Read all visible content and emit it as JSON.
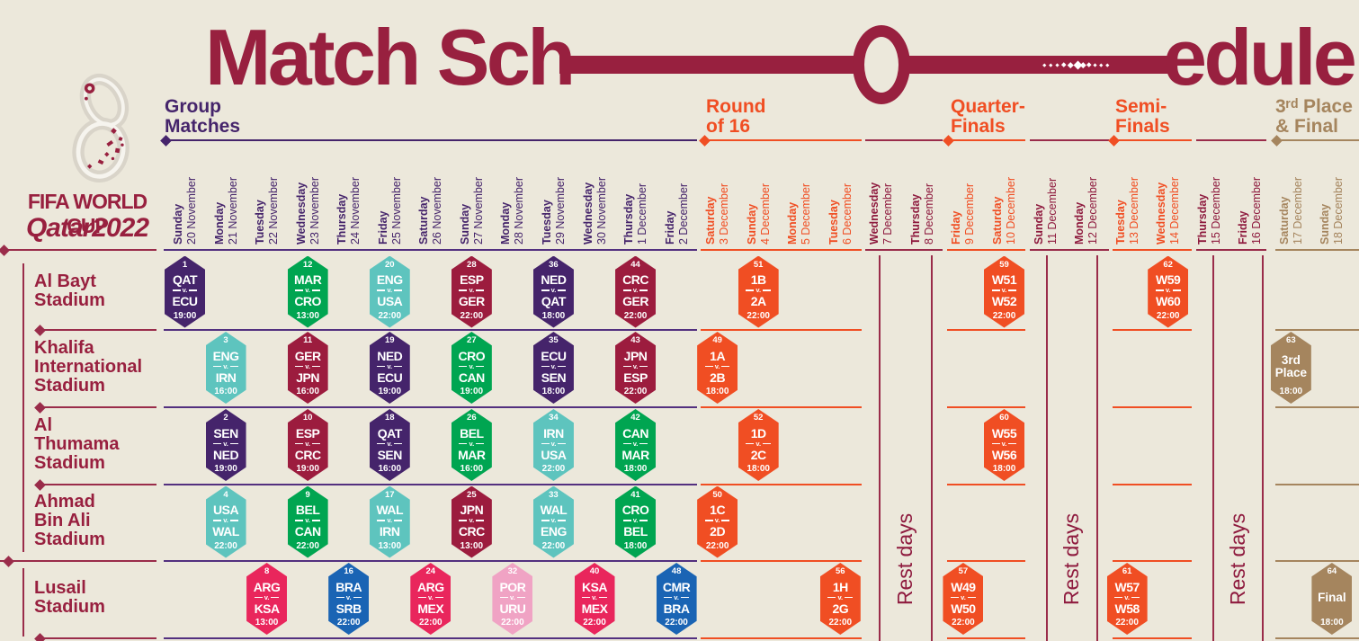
{
  "title": {
    "left": "Match Sch",
    "right": "edule"
  },
  "logo": {
    "line1": "FIFA WORLD CUP",
    "line2": "Qatar2022"
  },
  "rest_days_label": "Rest days",
  "colors": {
    "background": "#ECE8DB",
    "brand_maroon": "#98203F",
    "rest_maroon": "#8E1A3E",
    "grid_purple": "#53307F",
    "purple": "#45246B",
    "green": "#00A551",
    "teal": "#5EC4BE",
    "darkred": "#9C1C3E",
    "crimson": "#E9265C",
    "blue": "#1A64B4",
    "pink": "#F0A3C4",
    "orange": "#F04E23",
    "tan": "#A5855E"
  },
  "sections": [
    {
      "id": "group",
      "lines": [
        "Group",
        "Matches"
      ],
      "color": "#45246B"
    },
    {
      "id": "r16",
      "lines": [
        "Round",
        "of 16"
      ],
      "color": "#F04E23"
    },
    {
      "id": "qf",
      "lines": [
        "Quarter-",
        "Finals"
      ],
      "color": "#F04E23"
    },
    {
      "id": "sf",
      "lines": [
        "Semi-",
        "Finals"
      ],
      "color": "#F04E23"
    },
    {
      "id": "final",
      "lines": [
        "3ʳᵈ Place",
        "& Final"
      ],
      "color": "#A5855E"
    }
  ],
  "dates": [
    {
      "day": "Sunday",
      "date": "20 November",
      "phase": "group"
    },
    {
      "day": "Monday",
      "date": "21 November",
      "phase": "group"
    },
    {
      "day": "Tuesday",
      "date": "22 November",
      "phase": "group"
    },
    {
      "day": "Wednesday",
      "date": "23 November",
      "phase": "group"
    },
    {
      "day": "Thursday",
      "date": "24 November",
      "phase": "group"
    },
    {
      "day": "Friday",
      "date": "25 November",
      "phase": "group"
    },
    {
      "day": "Saturday",
      "date": "26 November",
      "phase": "group"
    },
    {
      "day": "Sunday",
      "date": "27 November",
      "phase": "group"
    },
    {
      "day": "Monday",
      "date": "28 November",
      "phase": "group"
    },
    {
      "day": "Tuesday",
      "date": "29 November",
      "phase": "group"
    },
    {
      "day": "Wednesday",
      "date": "30 November",
      "phase": "group"
    },
    {
      "day": "Thursday",
      "date": "1 December",
      "phase": "group"
    },
    {
      "day": "Friday",
      "date": "2 December",
      "phase": "group"
    },
    {
      "day": "Saturday",
      "date": "3 December",
      "phase": "r16"
    },
    {
      "day": "Sunday",
      "date": "4 December",
      "phase": "r16"
    },
    {
      "day": "Monday",
      "date": "5 December",
      "phase": "r16"
    },
    {
      "day": "Tuesday",
      "date": "6 December",
      "phase": "r16"
    },
    {
      "day": "Wednesday",
      "date": "7 December",
      "phase": "rest"
    },
    {
      "day": "Thursday",
      "date": "8 December",
      "phase": "rest"
    },
    {
      "day": "Friday",
      "date": "9 December",
      "phase": "qf"
    },
    {
      "day": "Saturday",
      "date": "10 December",
      "phase": "qf"
    },
    {
      "day": "Sunday",
      "date": "11 December",
      "phase": "rest"
    },
    {
      "day": "Monday",
      "date": "12 December",
      "phase": "rest"
    },
    {
      "day": "Tuesday",
      "date": "13 December",
      "phase": "sf"
    },
    {
      "day": "Wednesday",
      "date": "14 December",
      "phase": "sf"
    },
    {
      "day": "Thursday",
      "date": "15 December",
      "phase": "rest"
    },
    {
      "day": "Friday",
      "date": "16 December",
      "phase": "rest"
    },
    {
      "day": "Saturday",
      "date": "17 December",
      "phase": "final"
    },
    {
      "day": "Sunday",
      "date": "18 December",
      "phase": "final"
    }
  ],
  "stadiums": [
    {
      "lines": [
        "Al Bayt",
        "Stadium"
      ]
    },
    {
      "lines": [
        "Khalifa",
        "International",
        "Stadium"
      ]
    },
    {
      "lines": [
        "Al",
        "Thumama",
        "Stadium"
      ]
    },
    {
      "lines": [
        "Ahmad",
        "Bin Ali",
        "Stadium"
      ]
    },
    {
      "lines": [
        "Lusail",
        "Stadium"
      ]
    }
  ],
  "matches": [
    {
      "no": "1",
      "row": 0,
      "col": 0,
      "home": "QAT",
      "away": "ECU",
      "time": "19:00",
      "color": "purple"
    },
    {
      "no": "12",
      "row": 0,
      "col": 3,
      "home": "MAR",
      "away": "CRO",
      "time": "13:00",
      "color": "green"
    },
    {
      "no": "20",
      "row": 0,
      "col": 5,
      "home": "ENG",
      "away": "USA",
      "time": "22:00",
      "color": "teal"
    },
    {
      "no": "28",
      "row": 0,
      "col": 7,
      "home": "ESP",
      "away": "GER",
      "time": "22:00",
      "color": "darkred"
    },
    {
      "no": "36",
      "row": 0,
      "col": 9,
      "home": "NED",
      "away": "QAT",
      "time": "18:00",
      "color": "purple"
    },
    {
      "no": "44",
      "row": 0,
      "col": 11,
      "home": "CRC",
      "away": "GER",
      "time": "22:00",
      "color": "darkred"
    },
    {
      "no": "51",
      "row": 0,
      "col": 14,
      "home": "1B",
      "away": "2A",
      "time": "22:00",
      "color": "orange"
    },
    {
      "no": "59",
      "row": 0,
      "col": 20,
      "home": "W51",
      "away": "W52",
      "time": "22:00",
      "color": "orange"
    },
    {
      "no": "62",
      "row": 0,
      "col": 24,
      "home": "W59",
      "away": "W60",
      "time": "22:00",
      "color": "orange"
    },
    {
      "no": "3",
      "row": 1,
      "col": 1,
      "home": "ENG",
      "away": "IRN",
      "time": "16:00",
      "color": "teal"
    },
    {
      "no": "11",
      "row": 1,
      "col": 3,
      "home": "GER",
      "away": "JPN",
      "time": "16:00",
      "color": "darkred"
    },
    {
      "no": "19",
      "row": 1,
      "col": 5,
      "home": "NED",
      "away": "ECU",
      "time": "19:00",
      "color": "purple"
    },
    {
      "no": "27",
      "row": 1,
      "col": 7,
      "home": "CRO",
      "away": "CAN",
      "time": "19:00",
      "color": "green"
    },
    {
      "no": "35",
      "row": 1,
      "col": 9,
      "home": "ECU",
      "away": "SEN",
      "time": "18:00",
      "color": "purple"
    },
    {
      "no": "43",
      "row": 1,
      "col": 11,
      "home": "JPN",
      "away": "ESP",
      "time": "22:00",
      "color": "darkred"
    },
    {
      "no": "49",
      "row": 1,
      "col": 13,
      "home": "1A",
      "away": "2B",
      "time": "18:00",
      "color": "orange"
    },
    {
      "no": "63",
      "row": 1,
      "col": 27,
      "label_lines": [
        "3rd",
        "Place"
      ],
      "time": "18:00",
      "color": "tan"
    },
    {
      "no": "2",
      "row": 2,
      "col": 1,
      "home": "SEN",
      "away": "NED",
      "time": "19:00",
      "color": "purple"
    },
    {
      "no": "10",
      "row": 2,
      "col": 3,
      "home": "ESP",
      "away": "CRC",
      "time": "19:00",
      "color": "darkred"
    },
    {
      "no": "18",
      "row": 2,
      "col": 5,
      "home": "QAT",
      "away": "SEN",
      "time": "16:00",
      "color": "purple"
    },
    {
      "no": "26",
      "row": 2,
      "col": 7,
      "home": "BEL",
      "away": "MAR",
      "time": "16:00",
      "color": "green"
    },
    {
      "no": "34",
      "row": 2,
      "col": 9,
      "home": "IRN",
      "away": "USA",
      "time": "22:00",
      "color": "teal"
    },
    {
      "no": "42",
      "row": 2,
      "col": 11,
      "home": "CAN",
      "away": "MAR",
      "time": "18:00",
      "color": "green"
    },
    {
      "no": "52",
      "row": 2,
      "col": 14,
      "home": "1D",
      "away": "2C",
      "time": "18:00",
      "color": "orange"
    },
    {
      "no": "60",
      "row": 2,
      "col": 20,
      "home": "W55",
      "away": "W56",
      "time": "18:00",
      "color": "orange"
    },
    {
      "no": "4",
      "row": 3,
      "col": 1,
      "home": "USA",
      "away": "WAL",
      "time": "22:00",
      "color": "teal"
    },
    {
      "no": "9",
      "row": 3,
      "col": 3,
      "home": "BEL",
      "away": "CAN",
      "time": "22:00",
      "color": "green"
    },
    {
      "no": "17",
      "row": 3,
      "col": 5,
      "home": "WAL",
      "away": "IRN",
      "time": "13:00",
      "color": "teal"
    },
    {
      "no": "25",
      "row": 3,
      "col": 7,
      "home": "JPN",
      "away": "CRC",
      "time": "13:00",
      "color": "darkred"
    },
    {
      "no": "33",
      "row": 3,
      "col": 9,
      "home": "WAL",
      "away": "ENG",
      "time": "22:00",
      "color": "teal"
    },
    {
      "no": "41",
      "row": 3,
      "col": 11,
      "home": "CRO",
      "away": "BEL",
      "time": "18:00",
      "color": "green"
    },
    {
      "no": "50",
      "row": 3,
      "col": 13,
      "home": "1C",
      "away": "2D",
      "time": "22:00",
      "color": "orange"
    },
    {
      "no": "8",
      "row": 4,
      "col": 2,
      "home": "ARG",
      "away": "KSA",
      "time": "13:00",
      "color": "crimson"
    },
    {
      "no": "16",
      "row": 4,
      "col": 4,
      "home": "BRA",
      "away": "SRB",
      "time": "22:00",
      "color": "blue"
    },
    {
      "no": "24",
      "row": 4,
      "col": 6,
      "home": "ARG",
      "away": "MEX",
      "time": "22:00",
      "color": "crimson"
    },
    {
      "no": "32",
      "row": 4,
      "col": 8,
      "home": "POR",
      "away": "URU",
      "time": "22:00",
      "color": "pink"
    },
    {
      "no": "40",
      "row": 4,
      "col": 10,
      "home": "KSA",
      "away": "MEX",
      "time": "22:00",
      "color": "crimson"
    },
    {
      "no": "48",
      "row": 4,
      "col": 12,
      "home": "CMR",
      "away": "BRA",
      "time": "22:00",
      "color": "blue"
    },
    {
      "no": "56",
      "row": 4,
      "col": 16,
      "home": "1H",
      "away": "2G",
      "time": "22:00",
      "color": "orange"
    },
    {
      "no": "57",
      "row": 4,
      "col": 19,
      "home": "W49",
      "away": "W50",
      "time": "22:00",
      "color": "orange"
    },
    {
      "no": "61",
      "row": 4,
      "col": 23,
      "home": "W57",
      "away": "W58",
      "time": "22:00",
      "color": "orange"
    },
    {
      "no": "64",
      "row": 4,
      "col": 28,
      "label_lines": [
        "Final"
      ],
      "time": "18:00",
      "color": "tan"
    }
  ]
}
